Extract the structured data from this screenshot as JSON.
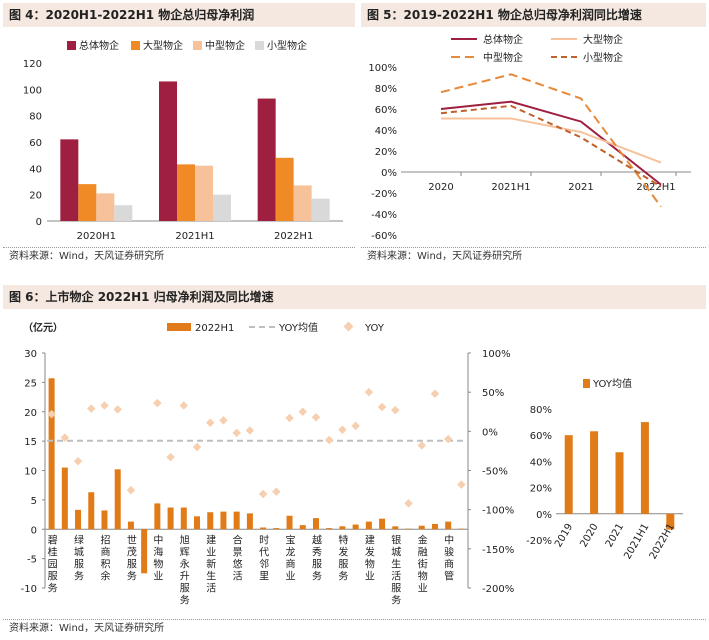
{
  "charts": {
    "fig4": {
      "title": "图 4：2020H1-2022H1 物企总归母净利润",
      "source": "资料来源：Wind，天风证券研究所"
    },
    "fig5": {
      "title": "图 5：2019-2022H1 物企总归母净利润同比增速",
      "source": "资料来源：Wind，天风证券研究所"
    },
    "fig6": {
      "title": "图 6：上市物企 2022H1 归母净利润及同比增速",
      "source": "资料来源：Wind，天风证券研究所"
    }
  },
  "colors": {
    "dark_red": "#9e1f3f",
    "orange": "#f08a24",
    "light_orange": "#f7c19a",
    "light_gray": "#d9d9d9",
    "bar6": "#e07b17",
    "yoy_mean": "#bfbfbf",
    "yoy": "#f5cfb0",
    "line_total": "#9e1f3f",
    "line_large": "#f7c19a",
    "line_medium": "#e68a3c",
    "line_small": "#c0602a"
  },
  "chart_data": [
    {
      "id": "fig4",
      "type": "bar",
      "title": "2020H1-2022H1 物企总归母净利润",
      "categories": [
        "2020H1",
        "2021H1",
        "2022H1"
      ],
      "series": [
        {
          "name": "总体物企",
          "values": [
            62,
            106,
            93
          ]
        },
        {
          "name": "大型物企",
          "values": [
            28,
            43,
            48
          ]
        },
        {
          "name": "中型物企",
          "values": [
            21,
            42,
            27
          ]
        },
        {
          "name": "小型物企",
          "values": [
            12,
            20,
            17
          ]
        }
      ],
      "ylim": [
        0,
        120
      ],
      "yticks": [
        0,
        20,
        40,
        60,
        80,
        100,
        120
      ],
      "legend": "top"
    },
    {
      "id": "fig5",
      "type": "line",
      "title": "2019-2022H1 物企总归母净利润同比增速",
      "categories": [
        "2020",
        "2021H1",
        "2021",
        "2022H1"
      ],
      "series": [
        {
          "name": "总体物企",
          "values": [
            60,
            67,
            48,
            -12
          ]
        },
        {
          "name": "大型物企",
          "values": [
            51,
            51,
            38,
            9
          ]
        },
        {
          "name": "中型物企",
          "values": [
            76,
            93,
            70,
            -33
          ]
        },
        {
          "name": "小型物企",
          "values": [
            56,
            63,
            33,
            -14
          ]
        }
      ],
      "ylim": [
        -60,
        100
      ],
      "yticks": [
        "100%",
        "80%",
        "60%",
        "40%",
        "20%",
        "0%",
        "-20%",
        "-40%",
        "-60%"
      ],
      "legend": "top"
    },
    {
      "id": "fig6",
      "type": "bar",
      "title": "上市物企 2022H1 归母净利润及同比增速",
      "yunit": "（亿元）",
      "legend_labels": [
        "2022H1",
        "YOY均值",
        "YOY"
      ],
      "categories": [
        "碧桂园服务",
        "绿城服务",
        "招商积余",
        "世茂服务",
        "中海物业",
        "旭辉永升服务",
        "建业新生活",
        "合景悠活",
        "时代邻里",
        "宝龙商业",
        "越秀服务",
        "特发服务",
        "建发物业",
        "银城生活服务",
        "金融街物业",
        "中骏商管"
      ],
      "category_slots": [
        0,
        2,
        4,
        6,
        8,
        10,
        12,
        14,
        16,
        18,
        20,
        22,
        24,
        26,
        28,
        30
      ],
      "bar_values": [
        25.7,
        10.5,
        3.3,
        6.3,
        3.2,
        10.2,
        1.3,
        -7.5,
        4.4,
        3.7,
        3.7,
        2.2,
        2.9,
        3.0,
        3.0,
        2.7,
        0.3,
        0.2,
        2.3,
        0.7,
        1.9,
        0.2,
        0.5,
        0.8,
        1.3,
        1.8,
        0.5,
        0.1,
        0.6,
        0.9,
        1.3,
        0.1
      ],
      "yoy_values": [
        22,
        -8,
        -38,
        29,
        33,
        28,
        -75,
        null,
        36,
        -33,
        33,
        -20,
        11,
        14,
        -2,
        1,
        -80,
        -77,
        17,
        25,
        18,
        -11,
        2,
        7,
        50,
        31,
        27,
        -92,
        -18,
        48,
        -10,
        -68
      ],
      "yoy_mean": -12,
      "ylim_left": [
        -10,
        30
      ],
      "yticks_left": [
        -10,
        -5,
        0,
        5,
        10,
        15,
        20,
        25,
        30
      ],
      "ylim_right": [
        -200,
        100
      ],
      "yticks_right": [
        "100%",
        "50%",
        "0%",
        "-50%",
        "-100%",
        "-150%",
        "-200%"
      ]
    },
    {
      "id": "fig6_inset",
      "type": "bar",
      "title": "YOY均值",
      "categories": [
        "2019",
        "2020",
        "2021",
        "2021H1",
        "2022H1"
      ],
      "values": [
        60,
        63,
        47,
        70,
        -12
      ],
      "ylim": [
        -20,
        80
      ],
      "yticks": [
        "80%",
        "60%",
        "40%",
        "20%",
        "0%",
        "-20%"
      ],
      "legend_label": "YOY均值"
    }
  ]
}
